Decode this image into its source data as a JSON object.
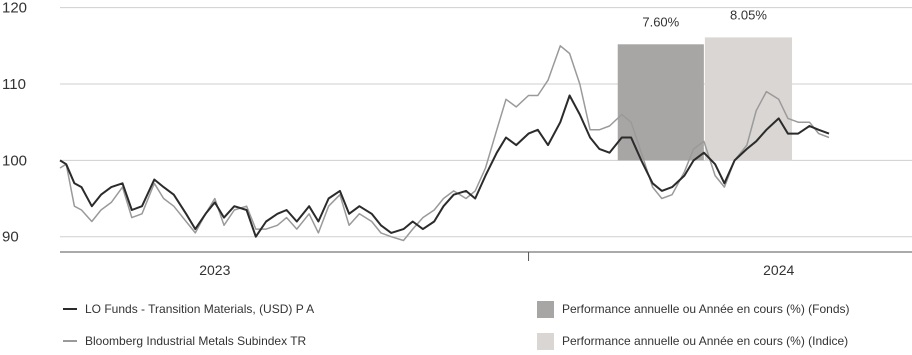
{
  "chart_data": {
    "type": "line",
    "title": "",
    "xlabel": "",
    "ylabel": "",
    "ylim": [
      88,
      121
    ],
    "yticks": [
      90,
      100,
      110,
      120
    ],
    "year_labels": [
      "2023",
      "2024"
    ],
    "grid": "horizontal",
    "legend_position": "bottom",
    "series": [
      {
        "name": "LO Funds - Transition Materials, (USD) P A",
        "color": "#2b2b2b",
        "x": [
          "2022-10-01",
          "2022-10-07",
          "2022-10-15",
          "2022-10-22",
          "2022-11-01",
          "2022-11-10",
          "2022-11-20",
          "2022-12-01",
          "2022-12-10",
          "2022-12-20",
          "2023-01-01",
          "2023-01-10",
          "2023-01-20",
          "2023-02-01",
          "2023-02-10",
          "2023-02-20",
          "2023-03-01",
          "2023-03-10",
          "2023-03-20",
          "2023-04-01",
          "2023-04-10",
          "2023-04-20",
          "2023-05-01",
          "2023-05-10",
          "2023-05-20",
          "2023-06-01",
          "2023-06-10",
          "2023-06-20",
          "2023-07-01",
          "2023-07-10",
          "2023-07-20",
          "2023-08-01",
          "2023-08-10",
          "2023-08-20",
          "2023-09-01",
          "2023-09-10",
          "2023-09-20",
          "2023-10-01",
          "2023-10-10",
          "2023-10-20",
          "2023-11-01",
          "2023-11-10",
          "2023-11-20",
          "2023-12-01",
          "2023-12-10",
          "2023-12-20",
          "2024-01-01",
          "2024-01-10",
          "2024-01-20",
          "2024-02-01",
          "2024-02-10",
          "2024-02-20",
          "2024-03-01",
          "2024-03-10",
          "2024-03-20",
          "2024-04-01",
          "2024-04-10",
          "2024-04-20",
          "2024-05-01",
          "2024-05-10",
          "2024-05-20",
          "2024-06-01",
          "2024-06-10",
          "2024-06-20",
          "2024-07-01",
          "2024-07-10",
          "2024-07-20",
          "2024-08-01",
          "2024-08-10",
          "2024-08-20",
          "2024-09-01",
          "2024-09-10",
          "2024-09-20",
          "2024-10-01",
          "2024-10-10",
          "2024-10-20",
          "2024-11-01",
          "2024-11-10",
          "2024-11-20",
          "2024-12-01",
          "2024-12-10",
          "2024-12-20",
          "2024-12-31"
        ],
        "y": [
          100,
          99.5,
          97,
          96.5,
          94,
          95.5,
          96.5,
          97,
          93.5,
          94,
          97.5,
          96.5,
          95.5,
          93,
          91,
          93,
          94.5,
          92.5,
          94,
          93.5,
          90,
          92,
          93,
          93.5,
          92,
          94,
          92,
          95,
          96,
          93,
          94,
          93,
          91.5,
          90.5,
          91,
          92,
          91,
          92,
          94,
          95.5,
          96,
          95,
          98,
          101,
          103,
          102,
          103.5,
          104,
          102,
          105,
          108.5,
          106,
          103,
          101.5,
          101,
          103,
          103,
          100,
          97,
          96,
          96.5,
          98,
          100,
          101,
          99.5,
          97,
          100,
          101.5,
          102.5,
          104,
          105.5,
          103.5,
          103.5,
          104.5,
          104,
          103.5,
          null,
          null,
          null,
          null,
          null,
          null,
          null
        ]
      },
      {
        "name": "Bloomberg Industrial Metals Subindex TR",
        "color": "#9a9a9a",
        "x": [
          "2022-10-01",
          "2022-10-07",
          "2022-10-15",
          "2022-10-22",
          "2022-11-01",
          "2022-11-10",
          "2022-11-20",
          "2022-12-01",
          "2022-12-10",
          "2022-12-20",
          "2023-01-01",
          "2023-01-10",
          "2023-01-20",
          "2023-02-01",
          "2023-02-10",
          "2023-02-20",
          "2023-03-01",
          "2023-03-10",
          "2023-03-20",
          "2023-04-01",
          "2023-04-10",
          "2023-04-20",
          "2023-05-01",
          "2023-05-10",
          "2023-05-20",
          "2023-06-01",
          "2023-06-10",
          "2023-06-20",
          "2023-07-01",
          "2023-07-10",
          "2023-07-20",
          "2023-08-01",
          "2023-08-10",
          "2023-08-20",
          "2023-09-01",
          "2023-09-10",
          "2023-09-20",
          "2023-10-01",
          "2023-10-10",
          "2023-10-20",
          "2023-11-01",
          "2023-11-10",
          "2023-11-20",
          "2023-12-01",
          "2023-12-10",
          "2023-12-20",
          "2024-01-01",
          "2024-01-10",
          "2024-01-20",
          "2024-02-01",
          "2024-02-10",
          "2024-02-20",
          "2024-03-01",
          "2024-03-10",
          "2024-03-20",
          "2024-04-01",
          "2024-04-10",
          "2024-04-20",
          "2024-05-01",
          "2024-05-10",
          "2024-05-20",
          "2024-06-01",
          "2024-06-10",
          "2024-06-20",
          "2024-07-01",
          "2024-07-10",
          "2024-07-20",
          "2024-08-01",
          "2024-08-10",
          "2024-08-20",
          "2024-09-01",
          "2024-09-10",
          "2024-09-20",
          "2024-10-01",
          "2024-10-10",
          "2024-10-20",
          "2024-11-01",
          "2024-11-10",
          "2024-11-20",
          "2024-12-01",
          "2024-12-10",
          "2024-12-20",
          "2024-12-31"
        ],
        "y": [
          99,
          99.5,
          94,
          93.5,
          92,
          93.5,
          94.5,
          96.5,
          92.5,
          93,
          97,
          95,
          94,
          92,
          90.5,
          93,
          95,
          91.5,
          93.5,
          94,
          91,
          91,
          91.5,
          92.5,
          91,
          93,
          90.5,
          94,
          95.5,
          91.5,
          93,
          92,
          90.5,
          90,
          89.5,
          91,
          92.5,
          93.5,
          95,
          96,
          95,
          96,
          99,
          104,
          108,
          107,
          108.5,
          108.5,
          110.5,
          115,
          114,
          110,
          104,
          104,
          104.5,
          106,
          105,
          101,
          96.5,
          95,
          95.5,
          98.5,
          101.5,
          102.5,
          98,
          96.5,
          100,
          102,
          106.5,
          109,
          108,
          105.5,
          105,
          105,
          103.5,
          103,
          null,
          null,
          null,
          null,
          null,
          null,
          null
        ]
      }
    ],
    "performance_bars": [
      {
        "name": "Performance annuelle ou Année en cours (%) (Fonds)",
        "label": "7.60%",
        "value": 7.6,
        "color": "#a8a5a5",
        "x_start": "2024-03-28",
        "x_end": "2024-06-20"
      },
      {
        "name": "Performance annuelle ou Année en cours (%) (Indice)",
        "label": "8.05%",
        "value": 8.05,
        "color": "#d9d6d4",
        "x_start": "2024-06-21",
        "x_end": "2024-09-14"
      }
    ]
  }
}
